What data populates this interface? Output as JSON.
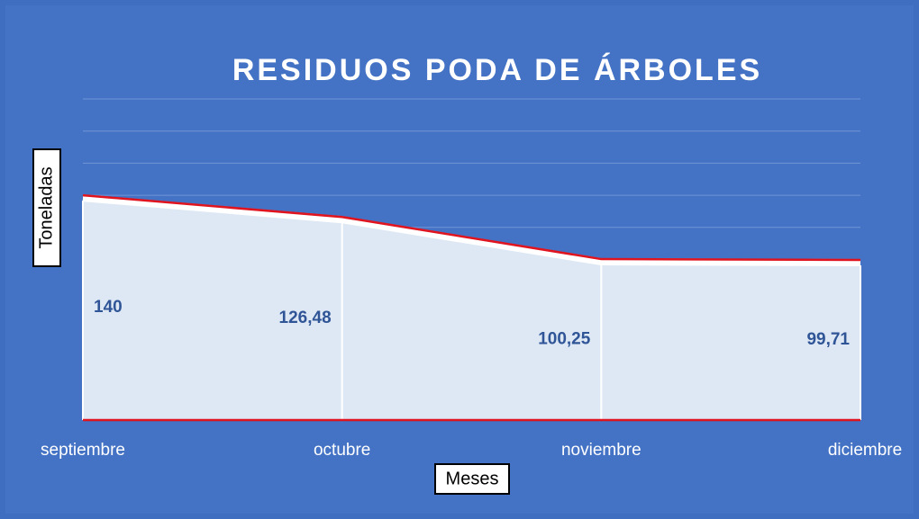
{
  "chart_data": {
    "type": "area",
    "title": "RESIDUOS PODA DE ÁRBOLES",
    "x_label": "Meses",
    "y_label": "Toneladas",
    "categories": [
      "septiembre",
      "octubre",
      "noviembre",
      "diciembre"
    ],
    "values": [
      140,
      126.48,
      100.25,
      99.71
    ],
    "value_labels": [
      "140",
      "126,48",
      "100,25",
      "99,71"
    ],
    "color": "#dee8f5",
    "line_color": "#e0141e",
    "ylim": [
      0,
      200
    ],
    "yticks": [
      0,
      20,
      40,
      60,
      80,
      100,
      120,
      140,
      160,
      180,
      200
    ],
    "grid": true
  }
}
